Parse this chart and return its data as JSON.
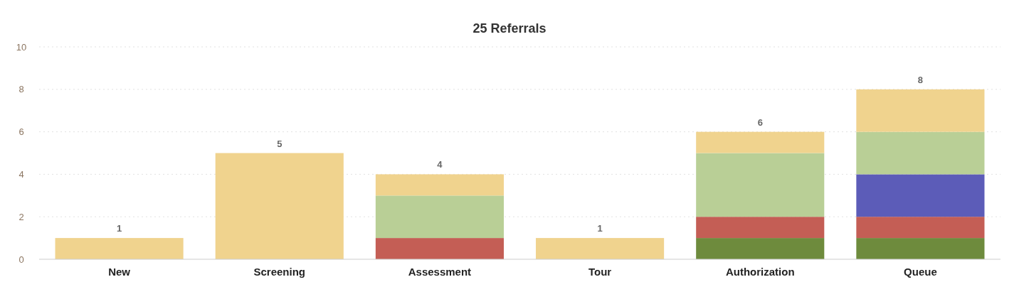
{
  "chart_data": {
    "type": "bar",
    "title": "25 Referrals",
    "stacked": true,
    "categories": [
      "New",
      "Screening",
      "Assessment",
      "Tour",
      "Authorization",
      "Queue"
    ],
    "series": [
      {
        "color": "#6e8b3d",
        "values": [
          null,
          null,
          null,
          null,
          1,
          1
        ]
      },
      {
        "color": "#c45e55",
        "values": [
          null,
          null,
          1,
          null,
          1,
          1
        ]
      },
      {
        "color": "#5c5cb8",
        "values": [
          null,
          null,
          null,
          null,
          null,
          2
        ]
      },
      {
        "color": "#b9cf96",
        "values": [
          null,
          null,
          2,
          null,
          3,
          2
        ]
      },
      {
        "color": "#f0d38e",
        "values": [
          1,
          5,
          1,
          1,
          1,
          2
        ]
      }
    ],
    "totals": [
      "1",
      "5",
      "4",
      "1",
      "6",
      "8"
    ],
    "ylim": [
      0,
      10
    ],
    "yticks": [
      0,
      2,
      4,
      6,
      8,
      10
    ],
    "grid": "y"
  }
}
